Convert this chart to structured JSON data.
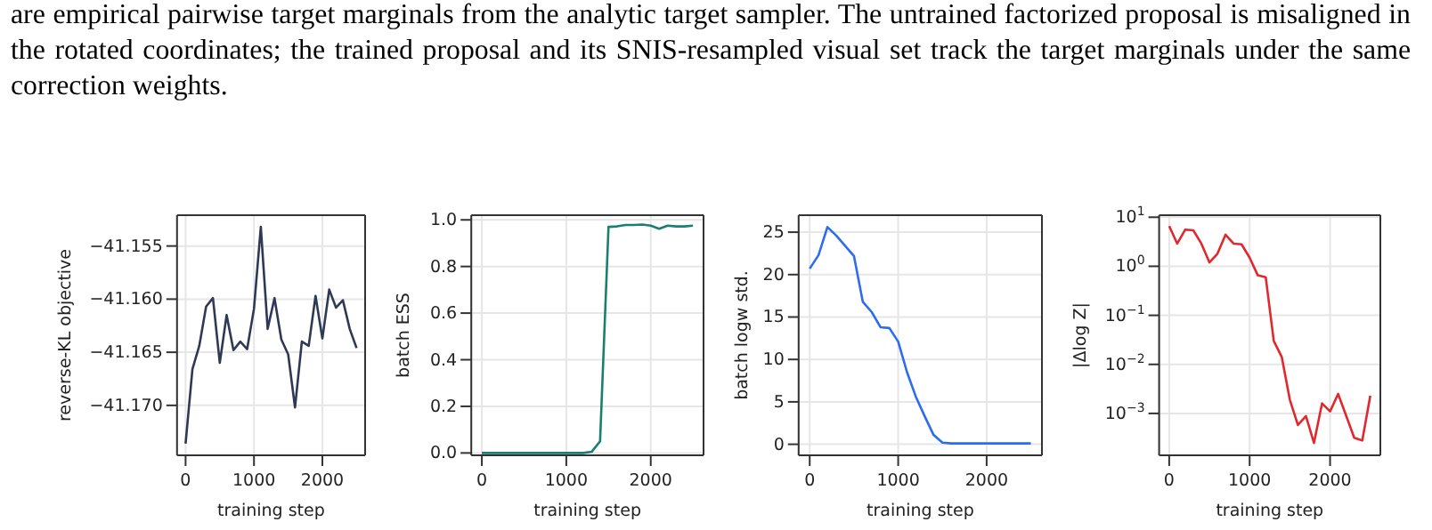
{
  "chart_data": [
    {
      "type": "line",
      "annotations": [
        "are empirical pairwise target marginals from the analytic target sampler. The untrained factorized proposal is misaligned in the rotated coordinates; the trained proposal and its SNIS-resampled visual set track the target marginals under the same correction weights."
      ],
      "xlabel": "training step",
      "ylabel": "reverse-KL objective",
      "color": "#2e3a55",
      "grid": true,
      "x": [
        0,
        100,
        200,
        300,
        400,
        500,
        600,
        700,
        800,
        900,
        1000,
        1100,
        1200,
        1300,
        1400,
        1500,
        1600,
        1700,
        1800,
        1900,
        2000,
        2100,
        2200,
        2300,
        2400,
        2500
      ],
      "values": [
        -41.1736,
        -41.1666,
        -41.1644,
        -41.1607,
        -41.1599,
        -41.166,
        -41.1615,
        -41.1648,
        -41.164,
        -41.1647,
        -41.1609,
        -41.1532,
        -41.1628,
        -41.1599,
        -41.1638,
        -41.1652,
        -41.1702,
        -41.164,
        -41.1644,
        -41.1597,
        -41.1637,
        -41.1591,
        -41.1608,
        -41.1601,
        -41.1628,
        -41.1646
      ],
      "xlim": [
        -125,
        2625
      ],
      "xticks": [
        0,
        1000,
        2000
      ],
      "ylim": [
        -41.1747,
        -41.1521
      ],
      "yticks": [
        {
          "value": -41.17,
          "label": "−41.170"
        },
        {
          "value": -41.165,
          "label": "−41.165"
        },
        {
          "value": -41.16,
          "label": "−41.160"
        },
        {
          "value": -41.155,
          "label": "−41.155"
        }
      ]
    },
    {
      "type": "line",
      "xlabel": "training step",
      "ylabel": "batch ESS",
      "color": "#1a7f6e",
      "grid": true,
      "x": [
        0,
        100,
        200,
        300,
        400,
        500,
        600,
        700,
        800,
        900,
        1000,
        1100,
        1200,
        1300,
        1400,
        1500,
        1600,
        1700,
        1800,
        1900,
        2000,
        2100,
        2200,
        2300,
        2400,
        2500
      ],
      "values": [
        0,
        0,
        0,
        0,
        0,
        0,
        0,
        0,
        0,
        0,
        0,
        0,
        0,
        0.005,
        0.05,
        0.97,
        0.972,
        0.978,
        0.978,
        0.98,
        0.975,
        0.962,
        0.975,
        0.972,
        0.972,
        0.975
      ],
      "xlim": [
        -125,
        2625
      ],
      "xticks": [
        0,
        1000,
        2000
      ],
      "ylim": [
        -0.01,
        1.02
      ],
      "yticks": [
        {
          "value": 0,
          "label": "0.0"
        },
        {
          "value": 0.2,
          "label": "0.2"
        },
        {
          "value": 0.4,
          "label": "0.4"
        },
        {
          "value": 0.6,
          "label": "0.6"
        },
        {
          "value": 0.8,
          "label": "0.8"
        },
        {
          "value": 1,
          "label": "1.0"
        }
      ]
    },
    {
      "type": "line",
      "xlabel": "training step",
      "ylabel": "batch logw std.",
      "color": "#2b6cf0",
      "grid": true,
      "x": [
        0,
        100,
        200,
        300,
        400,
        500,
        600,
        700,
        800,
        900,
        1000,
        1100,
        1200,
        1300,
        1400,
        1500,
        1600,
        1700,
        1800,
        1900,
        2000,
        2100,
        2200,
        2300,
        2400,
        2500
      ],
      "values": [
        20.7,
        22.3,
        25.6,
        24.6,
        23.4,
        22.2,
        16.8,
        15.6,
        13.8,
        13.7,
        12.1,
        8.5,
        5.6,
        3.3,
        1.1,
        0.2,
        0.1,
        0.1,
        0.1,
        0.1,
        0.1,
        0.1,
        0.1,
        0.1,
        0.1,
        0.1
      ],
      "xlim": [
        -125,
        2625
      ],
      "xticks": [
        0,
        1000,
        2000
      ],
      "ylim": [
        -1.3,
        27
      ],
      "yticks": [
        0,
        5,
        10,
        15,
        20,
        25
      ]
    },
    {
      "type": "line",
      "xlabel": "training step",
      "ylabel": "|Δlog Z|",
      "color": "#e0282e",
      "grid": true,
      "log": "y",
      "x": [
        0,
        100,
        200,
        300,
        400,
        500,
        600,
        700,
        800,
        900,
        1000,
        1100,
        1200,
        1300,
        1400,
        1500,
        1600,
        1700,
        1800,
        1900,
        2000,
        2100,
        2200,
        2300,
        2400,
        2500
      ],
      "values": [
        6.6,
        2.9,
        5.6,
        5.4,
        2.9,
        1.2,
        1.8,
        4.4,
        2.9,
        2.8,
        1.5,
        0.66,
        0.6,
        0.03,
        0.014,
        0.0019,
        0.00058,
        0.00088,
        0.00025,
        0.0016,
        0.0011,
        0.0025,
        0.0009,
        0.00032,
        0.00028,
        0.0023
      ],
      "xlim": [
        -125,
        2625
      ],
      "xticks": [
        0,
        1000,
        2000
      ],
      "ylim": [
        0.00014,
        11
      ],
      "yticks": [
        {
          "value": 0.001,
          "label": "10$^{−3}$"
        },
        {
          "value": 0.01,
          "label": "10$^{−2}$"
        },
        {
          "value": 0.1,
          "label": "10$^{−1}$"
        },
        {
          "value": 1,
          "label": "10$^{0}$"
        },
        {
          "value": 10,
          "label": "10$^{1}$"
        }
      ]
    }
  ]
}
